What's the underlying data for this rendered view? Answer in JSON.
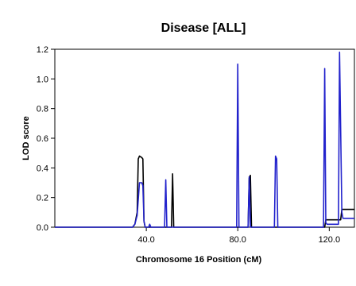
{
  "chart_data": {
    "type": "line",
    "title": "Disease [ALL]",
    "xlabel": "Chromosome 16 Position (cM)",
    "ylabel": "LOD score",
    "xlim": [
      0,
      131
    ],
    "ylim": [
      0,
      1.2
    ],
    "xticks": [
      {
        "value": 40,
        "label": "40.0"
      },
      {
        "value": 80,
        "label": "80.0"
      },
      {
        "value": 120,
        "label": "120.0"
      }
    ],
    "yticks": [
      {
        "value": 0,
        "label": "0.0"
      },
      {
        "value": 0.2,
        "label": "0.2"
      },
      {
        "value": 0.4,
        "label": "0.4"
      },
      {
        "value": 0.6,
        "label": "0.6"
      },
      {
        "value": 0.8,
        "label": "0.8"
      },
      {
        "value": 1.0,
        "label": "1.0"
      },
      {
        "value": 1.2,
        "label": "1.2"
      }
    ],
    "grid": false,
    "legend": "none",
    "series": [
      {
        "color": "#000000",
        "points": [
          [
            0,
            0
          ],
          [
            34,
            0
          ],
          [
            35,
            0.02
          ],
          [
            36,
            0.1
          ],
          [
            36.5,
            0.46
          ],
          [
            37,
            0.48
          ],
          [
            38,
            0.47
          ],
          [
            38.5,
            0.46
          ],
          [
            39,
            0.04
          ],
          [
            39.5,
            0
          ],
          [
            51,
            0
          ],
          [
            51.5,
            0.36
          ],
          [
            52,
            0
          ],
          [
            84.5,
            0
          ],
          [
            85,
            0.33
          ],
          [
            85.5,
            0.35
          ],
          [
            86,
            0
          ],
          [
            118,
            0
          ],
          [
            118.5,
            0.05
          ],
          [
            125,
            0.05
          ],
          [
            125.5,
            0.12
          ],
          [
            131,
            0.12
          ]
        ]
      },
      {
        "color": "#2222cc",
        "points": [
          [
            0,
            0
          ],
          [
            34,
            0
          ],
          [
            35,
            0.02
          ],
          [
            36,
            0.08
          ],
          [
            37,
            0.3
          ],
          [
            38,
            0.3
          ],
          [
            38.5,
            0.28
          ],
          [
            39,
            0.04
          ],
          [
            39.5,
            0
          ],
          [
            41,
            0
          ],
          [
            41.5,
            0.02
          ],
          [
            42,
            0
          ],
          [
            48,
            0
          ],
          [
            48.5,
            0.32
          ],
          [
            49,
            0
          ],
          [
            79.5,
            0
          ],
          [
            80,
            1.1
          ],
          [
            80.5,
            0
          ],
          [
            84.5,
            0
          ],
          [
            85,
            0.34
          ],
          [
            85.5,
            0
          ],
          [
            96,
            0
          ],
          [
            96.5,
            0.48
          ],
          [
            97,
            0.46
          ],
          [
            97.5,
            0
          ],
          [
            117.5,
            0
          ],
          [
            118,
            1.07
          ],
          [
            118.5,
            0.03
          ],
          [
            119,
            0.02
          ],
          [
            124,
            0.02
          ],
          [
            124.5,
            1.18
          ],
          [
            125.5,
            0.1
          ],
          [
            126,
            0.06
          ],
          [
            131,
            0.06
          ]
        ]
      }
    ]
  }
}
